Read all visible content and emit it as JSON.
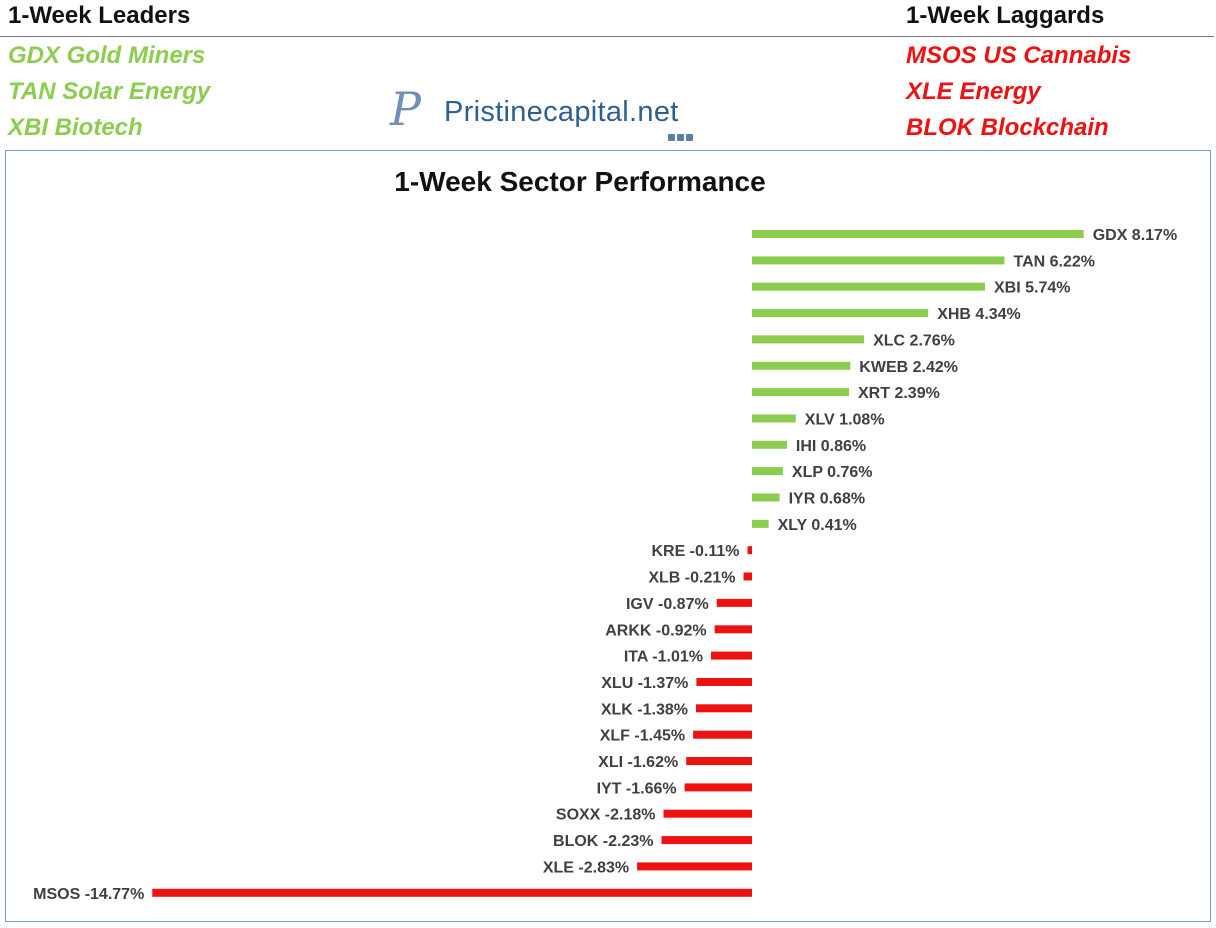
{
  "header": {
    "leaders_title": "1-Week Leaders",
    "laggards_title": "1-Week Laggards",
    "leaders": [
      "GDX Gold Miners",
      "TAN Solar Energy",
      "XBI Biotech"
    ],
    "laggards": [
      "MSOS US Cannabis",
      "XLE Energy",
      "BLOK Blockchain"
    ],
    "leader_color": "#8ccd4f",
    "laggard_color": "#ee1111"
  },
  "logo": {
    "monogram": "P",
    "name": "Pristinecapital",
    "tld": ".net"
  },
  "chart_data": {
    "type": "bar",
    "orientation": "horizontal",
    "title": "1-Week Sector Performance",
    "xlabel": "",
    "ylabel": "",
    "unit": "%",
    "positive_color": "#8ccd4f",
    "negative_color": "#ee1111",
    "categories": [
      "GDX",
      "TAN",
      "XBI",
      "XHB",
      "XLC",
      "KWEB",
      "XRT",
      "XLV",
      "IHI",
      "XLP",
      "IYR",
      "XLY",
      "KRE",
      "XLB",
      "IGV",
      "ARKK",
      "ITA",
      "XLU",
      "XLK",
      "XLF",
      "XLI",
      "IYT",
      "SOXX",
      "BLOK",
      "XLE",
      "MSOS"
    ],
    "values": [
      8.17,
      6.22,
      5.74,
      4.34,
      2.76,
      2.42,
      2.39,
      1.08,
      0.86,
      0.76,
      0.68,
      0.41,
      -0.11,
      -0.21,
      -0.87,
      -0.92,
      -1.01,
      -1.37,
      -1.38,
      -1.45,
      -1.62,
      -1.66,
      -2.18,
      -2.23,
      -2.83,
      -14.77
    ],
    "labels": [
      "GDX 8.17%",
      "TAN 6.22%",
      "XBI 5.74%",
      "XHB 4.34%",
      "XLC 2.76%",
      "KWEB 2.42%",
      "XRT 2.39%",
      "XLV 1.08%",
      "IHI 0.86%",
      "XLP 0.76%",
      "IYR 0.68%",
      "XLY 0.41%",
      "KRE -0.11%",
      "XLB -0.21%",
      "IGV -0.87%",
      "ARKK -0.92%",
      "ITA -1.01%",
      "XLU -1.37%",
      "XLK -1.38%",
      "XLF -1.45%",
      "XLI -1.62%",
      "IYT -1.66%",
      "SOXX -2.18%",
      "BLOK -2.23%",
      "XLE -2.83%",
      "MSOS -14.77%"
    ]
  }
}
